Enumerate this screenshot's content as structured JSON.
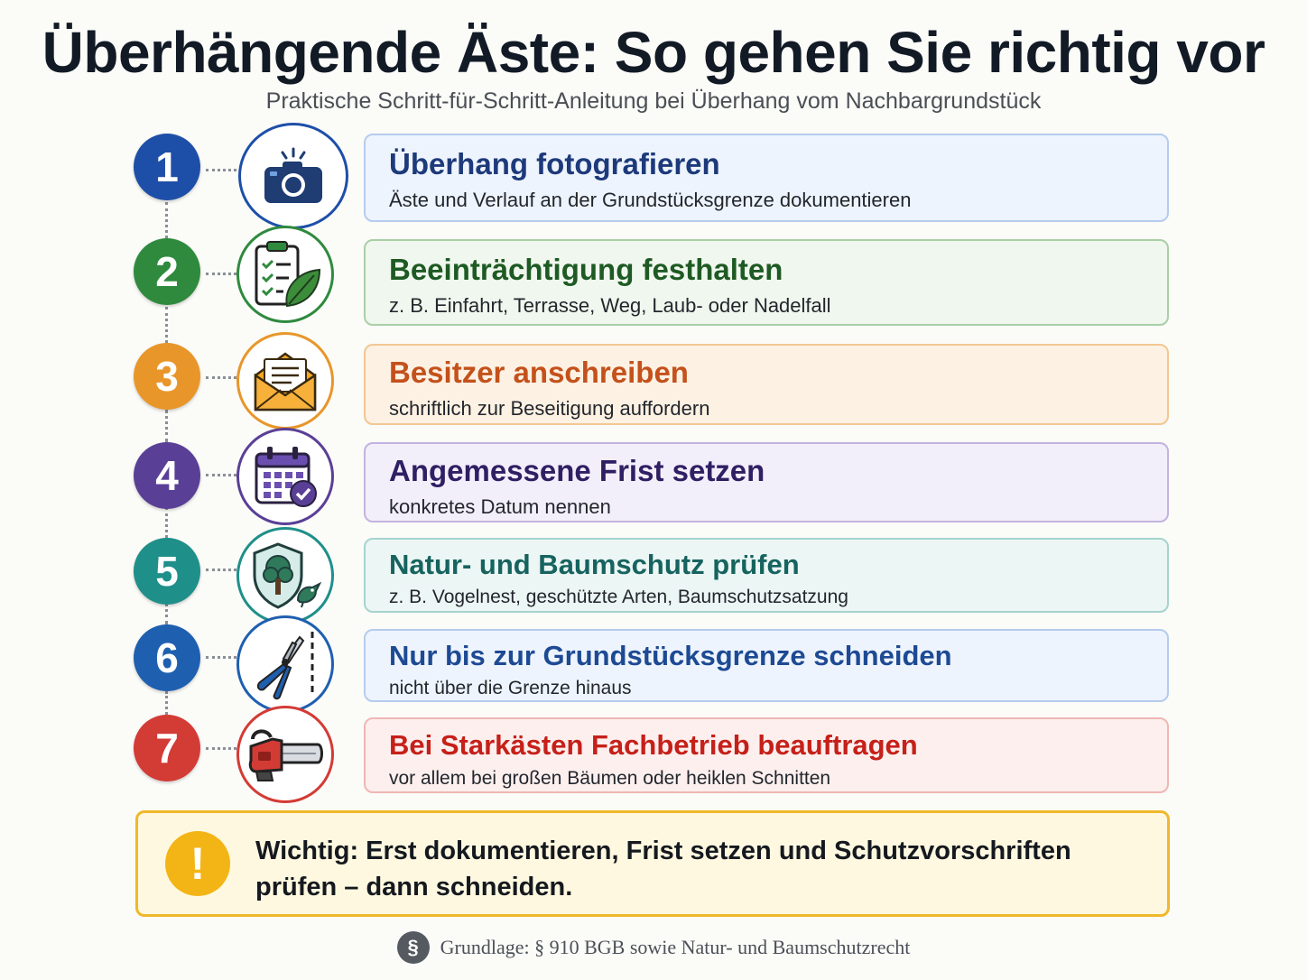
{
  "title": "Überhängende Äste: So gehen Sie richtig vor",
  "subtitle": "Praktische Schritt-für-Schritt-Anleitung bei Überhang vom Nachbargrundstück",
  "steps": [
    {
      "number": "1",
      "icon": "camera-icon",
      "color": "#1e4fa8",
      "title": "Überhang fotografieren",
      "desc": "Äste und Verlauf an der Grundstücksgrenze dokumentieren"
    },
    {
      "number": "2",
      "icon": "clipboard-leaf-icon",
      "color": "#2f8a3e",
      "title": "Beeinträchtigung festhalten",
      "desc": "z. B. Einfahrt, Terrasse, Weg, Laub- oder Nadelfall"
    },
    {
      "number": "3",
      "icon": "envelope-letter-icon",
      "color": "#e8962a",
      "title": "Besitzer anschreiben",
      "desc": "schriftlich zur Beseitigung auffordern"
    },
    {
      "number": "4",
      "icon": "calendar-check-icon",
      "color": "#5a3f96",
      "title": "Angemessene Frist setzen",
      "desc": "konkretes Datum nennen"
    },
    {
      "number": "5",
      "icon": "shield-tree-bird-icon",
      "color": "#1f8f8a",
      "title": "Natur- und Baumschutz prüfen",
      "desc": "z. B. Vogelnest, geschützte Arten, Baumschutzsatzung"
    },
    {
      "number": "6",
      "icon": "pruning-shears-icon",
      "color": "#1f5fb0",
      "title": "Nur bis zur Grundstücksgrenze schneiden",
      "desc": "nicht über die Grenze hinaus"
    },
    {
      "number": "7",
      "icon": "chainsaw-icon",
      "color": "#d33b35",
      "title": "Bei Starkästen Fachbetrieb beauftragen",
      "desc": "vor allem bei großen Bäumen oder heiklen Schnitten"
    }
  ],
  "warning": {
    "icon": "!",
    "text": "Wichtig: Erst dokumentieren, Frist setzen und Schutzvorschriften prüfen – dann schneiden."
  },
  "footer": {
    "symbol": "§",
    "text": "Grundlage: § 910 BGB sowie Natur- und Baumschutzrecht"
  }
}
